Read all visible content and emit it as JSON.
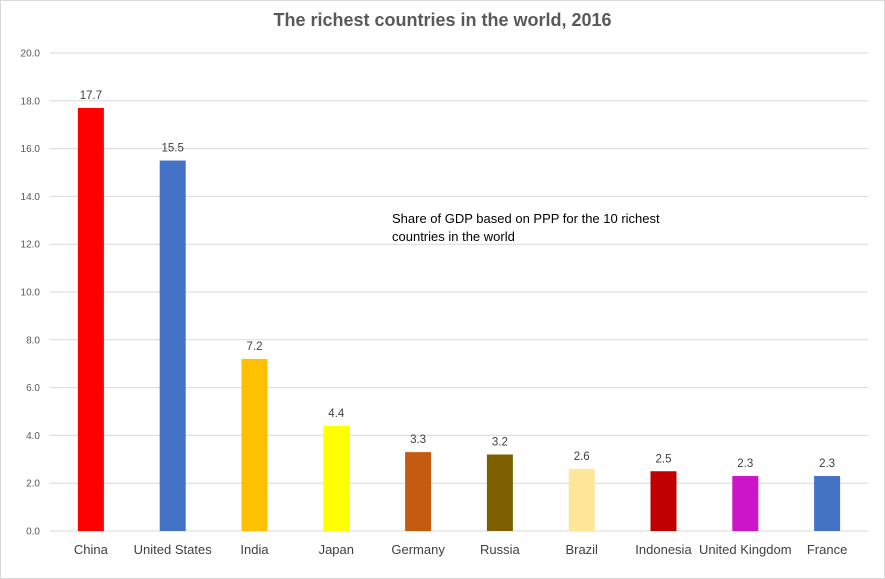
{
  "chart_data": {
    "type": "bar",
    "title": "The richest countries in the world, 2016",
    "annotation": "Share of GDP based on PPP for the 10 richest countries in the world",
    "categories": [
      "China",
      "United States",
      "India",
      "Japan",
      "Germany",
      "Russia",
      "Brazil",
      "Indonesia",
      "United Kingdom",
      "France"
    ],
    "values": [
      17.7,
      15.5,
      7.2,
      4.4,
      3.3,
      3.2,
      2.6,
      2.5,
      2.3,
      2.3
    ],
    "value_labels": [
      "17.7",
      "15.5",
      "7.2",
      "4.4",
      "3.3",
      "3.2",
      "2.6",
      "2.5",
      "2.3",
      "2.3"
    ],
    "colors": [
      "#ff0000",
      "#4472c4",
      "#ffc000",
      "#ffff00",
      "#c55a11",
      "#7f6000",
      "#ffe699",
      "#c00000",
      "#cc14c8",
      "#4472c4"
    ],
    "ylim": [
      0,
      20
    ],
    "yticks": [
      "0.0",
      "2.0",
      "4.0",
      "6.0",
      "8.0",
      "10.0",
      "12.0",
      "14.0",
      "16.0",
      "18.0",
      "20.0"
    ],
    "xlabel": "",
    "ylabel": "",
    "grid": true,
    "gridline_color": "#d9d9d9"
  }
}
